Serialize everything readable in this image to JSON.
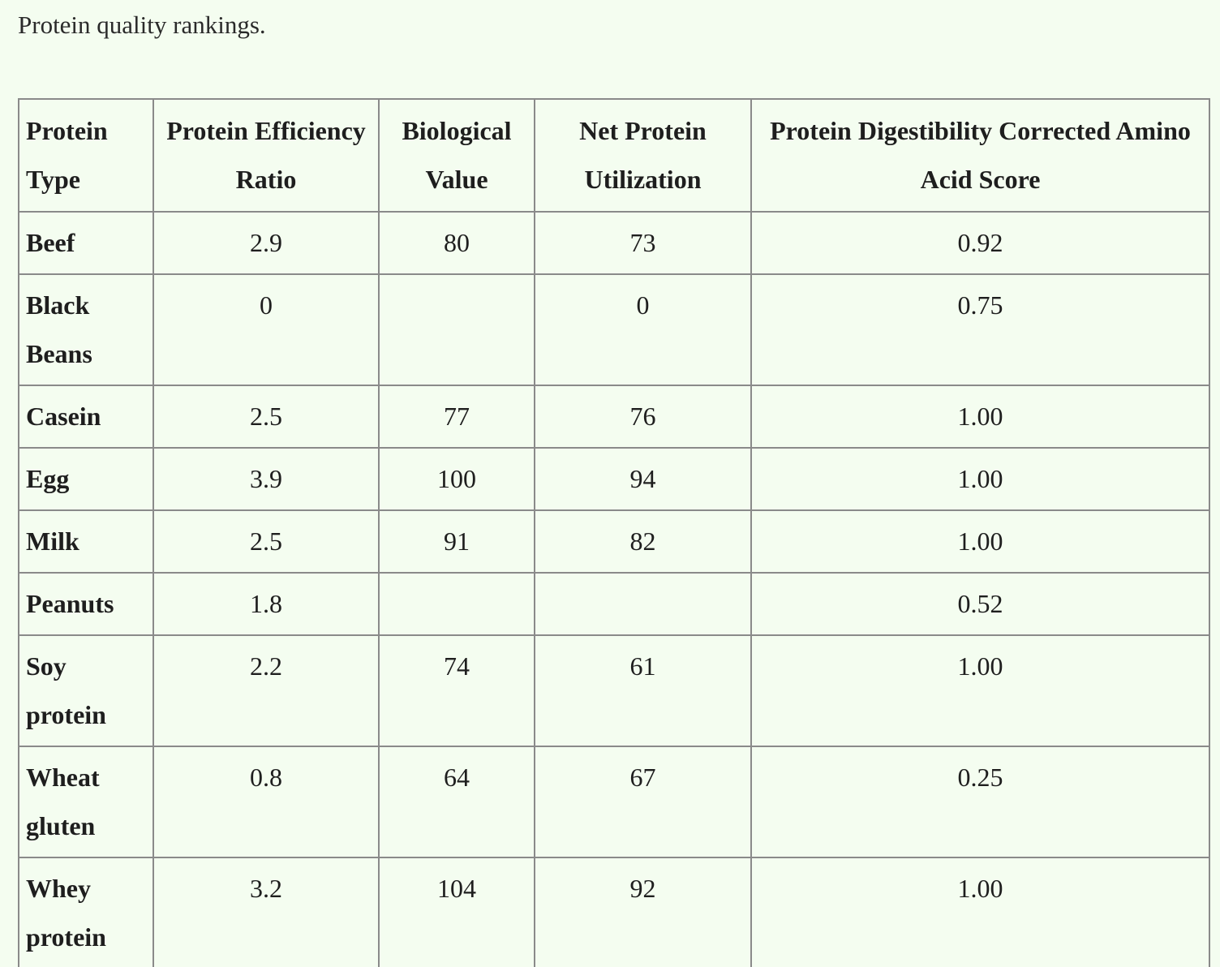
{
  "caption": "Protein quality rankings.",
  "table": {
    "headers": [
      "Protein Type",
      "Protein Efficiency Ratio",
      "Biological Value",
      "Net Protein Utilization",
      "Protein Digestibility Corrected Amino Acid Score"
    ],
    "rows": [
      [
        "Beef",
        "2.9",
        "80",
        "73",
        "0.92"
      ],
      [
        "Black Beans",
        "0",
        "",
        "0",
        "0.75"
      ],
      [
        "Casein",
        "2.5",
        "77",
        "76",
        "1.00"
      ],
      [
        "Egg",
        "3.9",
        "100",
        "94",
        "1.00"
      ],
      [
        "Milk",
        "2.5",
        "91",
        "82",
        "1.00"
      ],
      [
        "Peanuts",
        "1.8",
        "",
        "",
        "0.52"
      ],
      [
        "Soy protein",
        "2.2",
        "74",
        "61",
        "1.00"
      ],
      [
        "Wheat gluten",
        "0.8",
        "64",
        "67",
        "0.25"
      ],
      [
        "Whey protein",
        "3.2",
        "104",
        "92",
        "1.00"
      ]
    ]
  }
}
